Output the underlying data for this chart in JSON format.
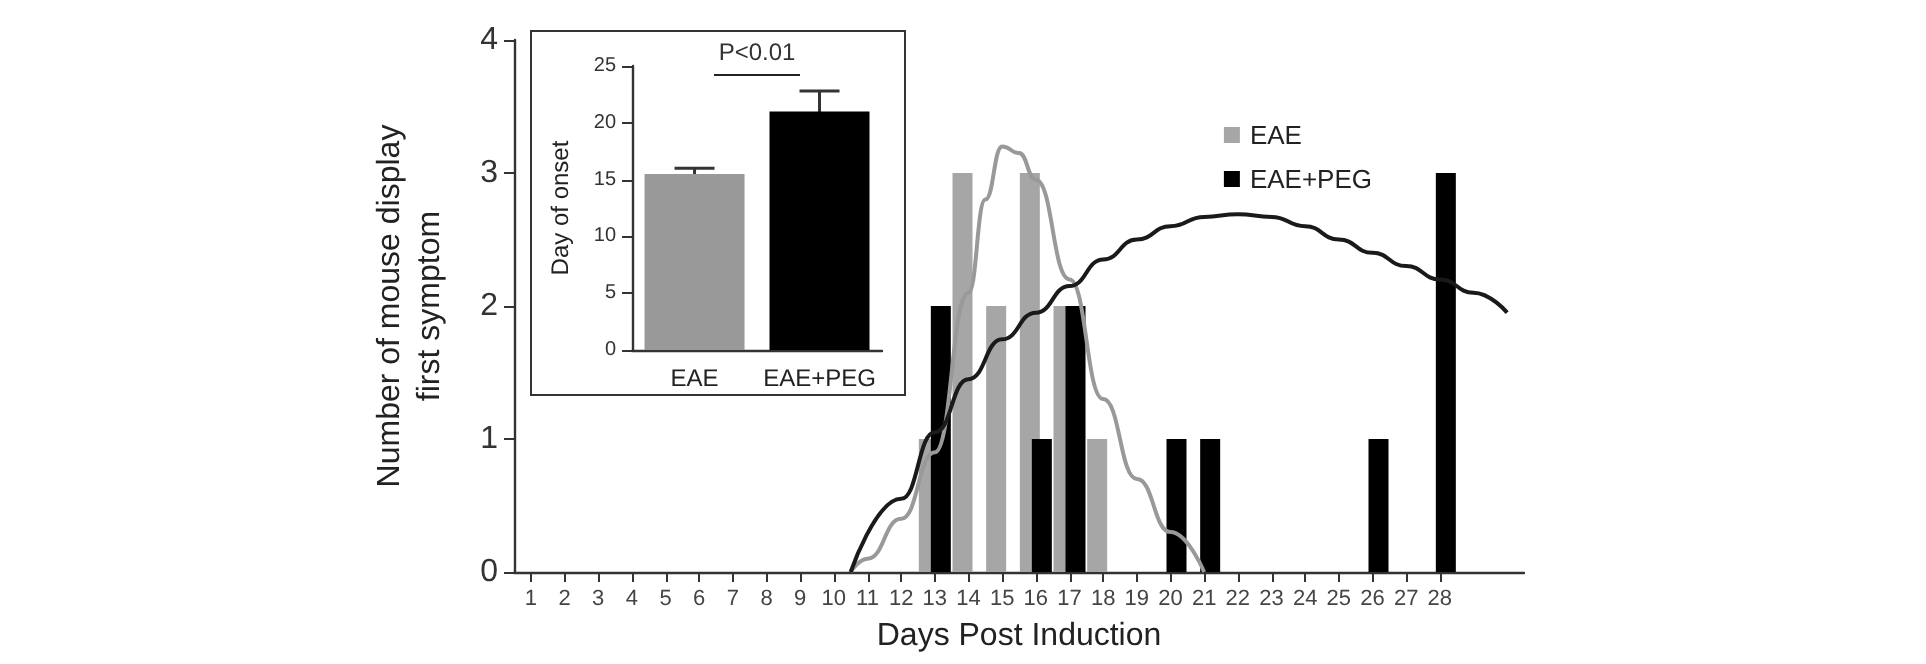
{
  "chart_data": [
    {
      "type": "bar",
      "xlabel": "Days Post Induction",
      "ylabel": "Number of mouse display\nfirst symptom",
      "series": [
        {
          "name": "EAE",
          "color": "#a6a6a6",
          "x": [
            13,
            14,
            15,
            16,
            17,
            18
          ],
          "values": [
            1,
            3,
            2,
            3,
            2,
            1
          ]
        },
        {
          "name": "EAE+PEG",
          "color": "#000000",
          "x": [
            13,
            16,
            17,
            20,
            21,
            26,
            28
          ],
          "values": [
            2,
            1,
            2,
            1,
            1,
            1,
            3
          ]
        },
        {
          "type": "line",
          "color": "#999999",
          "x": [
            10.5,
            11,
            12,
            13,
            14,
            14.5,
            15,
            15.5,
            16,
            17,
            18,
            19,
            20,
            21
          ],
          "values": [
            0,
            0.1,
            0.4,
            0.9,
            2.1,
            2.8,
            3.2,
            3.15,
            2.95,
            2.2,
            1.3,
            0.7,
            0.3,
            0
          ]
        },
        {
          "type": "line",
          "color": "#1a1a1a",
          "x": [
            10.5,
            12,
            13,
            14,
            15,
            16,
            17,
            18,
            19,
            20,
            21,
            22,
            23,
            24,
            25,
            26,
            27,
            28,
            29,
            30
          ],
          "values": [
            0,
            0.55,
            1.05,
            1.45,
            1.75,
            1.95,
            2.15,
            2.35,
            2.5,
            2.6,
            2.67,
            2.69,
            2.67,
            2.6,
            2.5,
            2.4,
            2.3,
            2.2,
            2.1,
            1.95
          ]
        }
      ],
      "xlim": [
        0.5,
        30.5
      ],
      "xticks": [
        1,
        2,
        3,
        4,
        5,
        6,
        7,
        8,
        9,
        10,
        11,
        12,
        13,
        14,
        15,
        16,
        17,
        18,
        19,
        20,
        21,
        22,
        23,
        24,
        25,
        26,
        27,
        28
      ],
      "ylim": [
        0,
        4
      ],
      "yticks": [
        0,
        1,
        2,
        3,
        4
      ],
      "legend": "top right",
      "grid": false,
      "marker": "none"
    },
    {
      "type": "bar",
      "ylabel": "Day of onset",
      "categories": [
        "EAE",
        "EAE+PEG"
      ],
      "colors": [
        "#999999",
        "#000000"
      ],
      "values": [
        15.5,
        21
      ],
      "errors": [
        0.5,
        1.8
      ],
      "ylim": [
        0,
        25
      ],
      "yticks": [
        0,
        5,
        10,
        15,
        20,
        25
      ],
      "annotations": [
        "P<0.01"
      ]
    }
  ]
}
